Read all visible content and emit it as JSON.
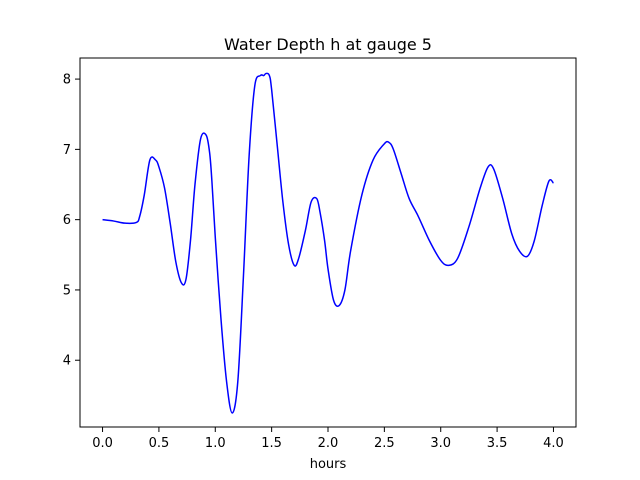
{
  "chart_data": {
    "type": "line",
    "title": "Water Depth h at gauge 5",
    "xlabel": "hours",
    "ylabel": "",
    "xlim": [
      -0.2,
      4.2
    ],
    "ylim": [
      3.05,
      8.3
    ],
    "xticks": [
      0.0,
      0.5,
      1.0,
      1.5,
      2.0,
      2.5,
      3.0,
      3.5,
      4.0
    ],
    "xtick_labels": [
      "0.0",
      "0.5",
      "1.0",
      "1.5",
      "2.0",
      "2.5",
      "3.0",
      "3.5",
      "4.0"
    ],
    "yticks": [
      4,
      5,
      6,
      7,
      8
    ],
    "ytick_labels": [
      "4",
      "5",
      "6",
      "7",
      "8"
    ],
    "grid": false,
    "series": [
      {
        "color": "#0000ff",
        "x": [
          0.0,
          0.1,
          0.2,
          0.3,
          0.33,
          0.37,
          0.42,
          0.47,
          0.5,
          0.55,
          0.6,
          0.65,
          0.7,
          0.74,
          0.78,
          0.82,
          0.87,
          0.92,
          0.95,
          0.97,
          1.0,
          1.05,
          1.1,
          1.15,
          1.2,
          1.25,
          1.3,
          1.35,
          1.4,
          1.43,
          1.45,
          1.48,
          1.5,
          1.55,
          1.6,
          1.65,
          1.7,
          1.74,
          1.8,
          1.85,
          1.9,
          1.93,
          1.97,
          2.0,
          2.05,
          2.1,
          2.15,
          2.2,
          2.3,
          2.4,
          2.5,
          2.54,
          2.58,
          2.65,
          2.72,
          2.8,
          2.9,
          3.0,
          3.07,
          3.15,
          3.25,
          3.35,
          3.42,
          3.47,
          3.55,
          3.63,
          3.7,
          3.77,
          3.83,
          3.9,
          3.96,
          4.0
        ],
        "y": [
          6.0,
          5.98,
          5.95,
          5.96,
          6.05,
          6.35,
          6.85,
          6.85,
          6.75,
          6.45,
          5.95,
          5.4,
          5.1,
          5.15,
          5.7,
          6.5,
          7.15,
          7.2,
          6.95,
          6.55,
          5.75,
          4.6,
          3.7,
          3.25,
          3.7,
          5.2,
          6.9,
          7.9,
          8.05,
          8.05,
          8.08,
          8.05,
          7.85,
          7.05,
          6.25,
          5.65,
          5.35,
          5.45,
          5.85,
          6.25,
          6.3,
          6.1,
          5.7,
          5.3,
          4.85,
          4.78,
          5.0,
          5.55,
          6.35,
          6.85,
          7.08,
          7.1,
          7.0,
          6.65,
          6.3,
          6.05,
          5.7,
          5.42,
          5.35,
          5.45,
          5.9,
          6.45,
          6.75,
          6.72,
          6.3,
          5.8,
          5.55,
          5.48,
          5.7,
          6.2,
          6.55,
          6.52
        ]
      }
    ]
  }
}
